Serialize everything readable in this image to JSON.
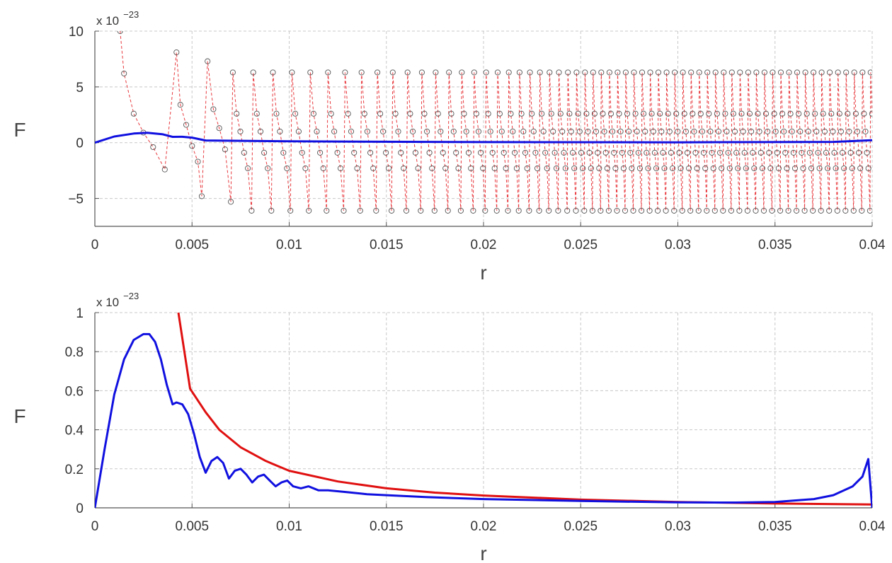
{
  "chart_data": [
    {
      "type": "line",
      "xlabel": "r",
      "ylabel": "F",
      "exponent_prefix": "x 10",
      "exponent_power": "−23",
      "xlim": [
        0,
        0.04
      ],
      "ylim": [
        -7.5,
        10
      ],
      "x_ticks": [
        0,
        0.005,
        0.01,
        0.015,
        0.02,
        0.025,
        0.03,
        0.035,
        0.04
      ],
      "x_tick_labels": [
        "0",
        "0.005",
        "0.01",
        "0.015",
        "0.02",
        "0.025",
        "0.03",
        "0.035",
        "0.04"
      ],
      "y_ticks": [
        -5,
        0,
        5,
        10
      ],
      "y_tick_labels": [
        "−5",
        "0",
        "5",
        "10"
      ],
      "grid": true,
      "series": [
        {
          "style": "dashed-circles",
          "color": "#e8383d",
          "marker_color": "#555555",
          "description_values": "oscillating series with circle markers; envelope approx +6.3 / -6.2, decaying from ~10 near r=0.0013",
          "x": [
            0.0013,
            0.0015,
            0.002,
            0.0025,
            0.003,
            0.0036,
            0.0042,
            0.0044,
            0.0047,
            0.005,
            0.0053,
            0.0055,
            0.0058,
            0.0061,
            0.0064,
            0.0067,
            0.007
          ],
          "values": [
            10,
            6.2,
            2.6,
            0.9,
            -0.4,
            -2.4,
            8.1,
            3.4,
            1.6,
            -0.3,
            -1.7,
            -4.8,
            7.3,
            3.0,
            1.3,
            -0.6,
            -5.3
          ]
        },
        {
          "style": "solid",
          "color": "#1010e0",
          "x": [
            0,
            0.001,
            0.002,
            0.0027,
            0.0035,
            0.004,
            0.0045,
            0.005,
            0.0057,
            0.01,
            0.02,
            0.03,
            0.038,
            0.04
          ],
          "values": [
            0,
            0.55,
            0.82,
            0.89,
            0.75,
            0.52,
            0.53,
            0.45,
            0.2,
            0.12,
            0.05,
            0.03,
            0.07,
            0.22
          ]
        }
      ]
    },
    {
      "type": "line",
      "xlabel": "r",
      "ylabel": "F",
      "exponent_prefix": "x 10",
      "exponent_power": "−23",
      "xlim": [
        0,
        0.04
      ],
      "ylim": [
        0,
        1
      ],
      "x_ticks": [
        0,
        0.005,
        0.01,
        0.015,
        0.02,
        0.025,
        0.03,
        0.035,
        0.04
      ],
      "x_tick_labels": [
        "0",
        "0.005",
        "0.01",
        "0.015",
        "0.02",
        "0.025",
        "0.03",
        "0.035",
        "0.04"
      ],
      "y_ticks": [
        0,
        0.2,
        0.4,
        0.6,
        0.8,
        1
      ],
      "y_tick_labels": [
        "0",
        "0.2",
        "0.4",
        "0.6",
        "0.8",
        "1"
      ],
      "grid": true,
      "series": [
        {
          "style": "solid",
          "color": "#e01010",
          "x": [
            0.0043,
            0.0049,
            0.0057,
            0.0064,
            0.0075,
            0.0088,
            0.01,
            0.0125,
            0.015,
            0.0175,
            0.02,
            0.025,
            0.03,
            0.035,
            0.04
          ],
          "values": [
            1.0,
            0.61,
            0.49,
            0.4,
            0.31,
            0.24,
            0.19,
            0.135,
            0.1,
            0.078,
            0.063,
            0.042,
            0.03,
            0.022,
            0.017
          ]
        },
        {
          "style": "solid",
          "color": "#1010e0",
          "x": [
            0,
            0.0005,
            0.001,
            0.0015,
            0.002,
            0.0025,
            0.0028,
            0.0031,
            0.0034,
            0.0037,
            0.004,
            0.0042,
            0.0045,
            0.0048,
            0.0051,
            0.0054,
            0.0057,
            0.006,
            0.0063,
            0.0066,
            0.0069,
            0.0072,
            0.0075,
            0.0078,
            0.0081,
            0.0084,
            0.0087,
            0.009,
            0.0093,
            0.0096,
            0.0099,
            0.0102,
            0.0106,
            0.011,
            0.0115,
            0.012,
            0.013,
            0.014,
            0.015,
            0.017,
            0.02,
            0.025,
            0.03,
            0.033,
            0.035,
            0.037,
            0.038,
            0.039,
            0.0395,
            0.0398,
            0.04
          ],
          "values": [
            0,
            0.3,
            0.58,
            0.76,
            0.86,
            0.89,
            0.89,
            0.85,
            0.76,
            0.63,
            0.53,
            0.54,
            0.53,
            0.48,
            0.38,
            0.26,
            0.18,
            0.24,
            0.26,
            0.23,
            0.15,
            0.19,
            0.2,
            0.17,
            0.13,
            0.16,
            0.17,
            0.14,
            0.11,
            0.13,
            0.14,
            0.11,
            0.1,
            0.11,
            0.09,
            0.09,
            0.08,
            0.07,
            0.065,
            0.055,
            0.045,
            0.035,
            0.028,
            0.027,
            0.03,
            0.045,
            0.065,
            0.11,
            0.16,
            0.25,
            0.0
          ]
        }
      ]
    }
  ]
}
